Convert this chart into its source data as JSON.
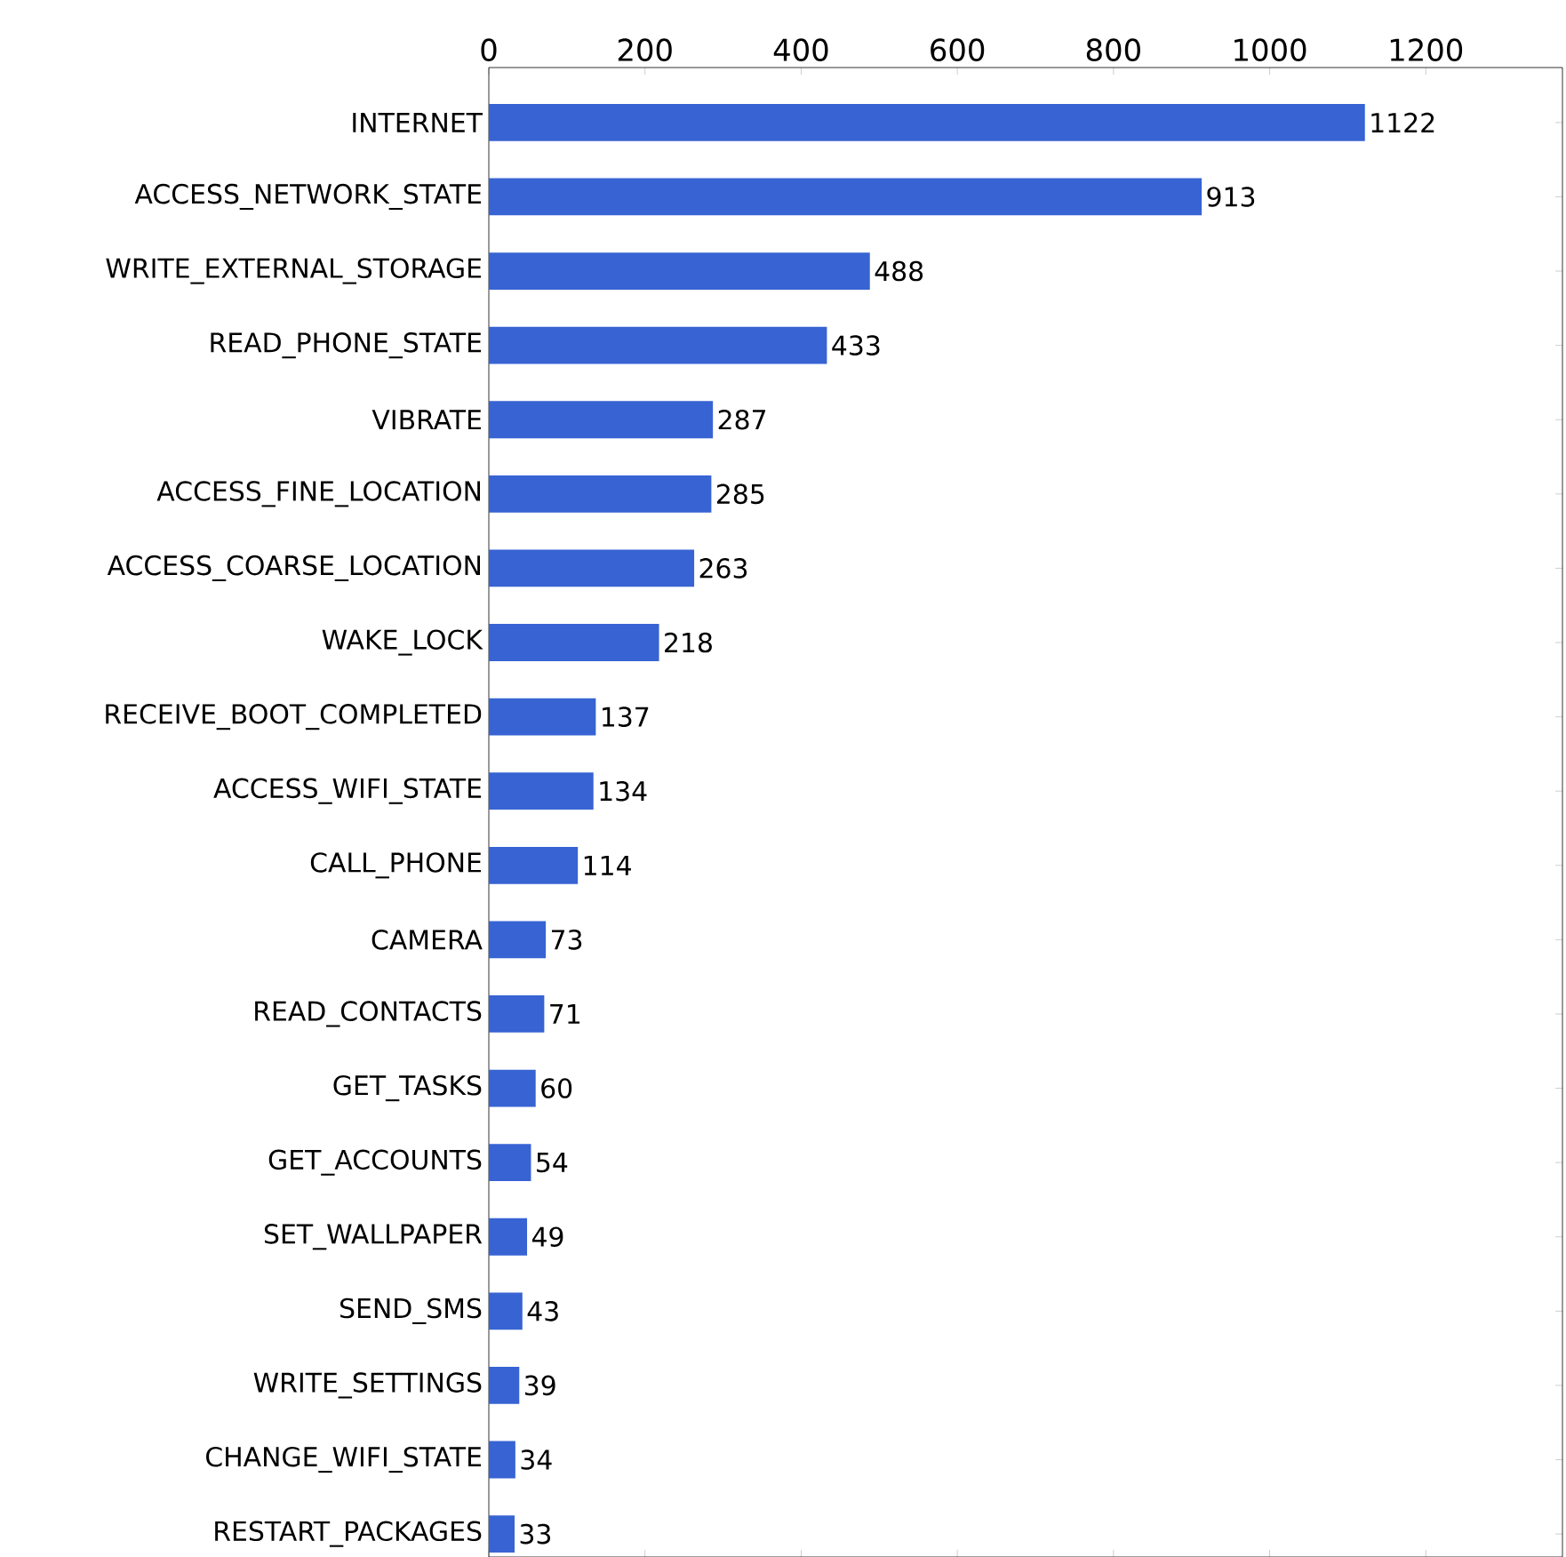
{
  "chart_data": {
    "type": "bar",
    "orientation": "horizontal",
    "categories": [
      "INTERNET",
      "ACCESS_NETWORK_STATE",
      "WRITE_EXTERNAL_STORAGE",
      "READ_PHONE_STATE",
      "VIBRATE",
      "ACCESS_FINE_LOCATION",
      "ACCESS_COARSE_LOCATION",
      "WAKE_LOCK",
      "RECEIVE_BOOT_COMPLETED",
      "ACCESS_WIFI_STATE",
      "CALL_PHONE",
      "CAMERA",
      "READ_CONTACTS",
      "GET_TASKS",
      "GET_ACCOUNTS",
      "SET_WALLPAPER",
      "SEND_SMS",
      "WRITE_SETTINGS",
      "CHANGE_WIFI_STATE",
      "RESTART_PACKAGES"
    ],
    "values": [
      1122,
      913,
      488,
      433,
      287,
      285,
      263,
      218,
      137,
      134,
      114,
      73,
      71,
      60,
      54,
      49,
      43,
      39,
      34,
      33
    ],
    "color": "#3763d3",
    "xlim": [
      0,
      1375
    ],
    "xticks": [
      0,
      200,
      400,
      600,
      800,
      1000,
      1200
    ],
    "data_labels": true
  }
}
